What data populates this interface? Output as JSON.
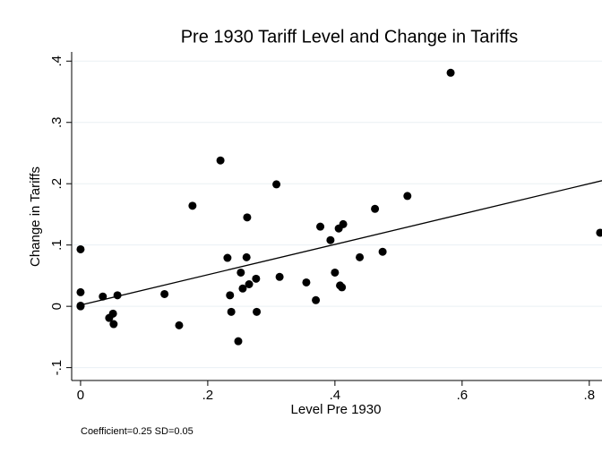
{
  "chart_data": {
    "type": "scatter",
    "title": "Pre 1930 Tariff Level and Change in Tariffs",
    "x_label": "Level Pre 1930",
    "y_label": "Change in Tariffs",
    "note": "Coefficient=0.25  SD=0.05",
    "xlim": [
      -0.014,
      0.82
    ],
    "ylim": [
      -0.121,
      0.415
    ],
    "xticks": [
      0,
      {
        "value": 0.2,
        "label": ".2"
      },
      {
        "value": 0.4,
        "label": ".4"
      },
      {
        "value": 0.6,
        "label": ".6"
      },
      {
        "value": 0.8,
        "label": ".8"
      }
    ],
    "yticks": [
      {
        "value": -0.1,
        "label": "-.1"
      },
      0,
      {
        "value": 0.1,
        "label": ".1"
      },
      {
        "value": 0.2,
        "label": ".2"
      },
      {
        "value": 0.3,
        "label": ".3"
      },
      {
        "value": 0.4,
        "label": ".4"
      }
    ],
    "grid": true,
    "color": "#000000",
    "x": [
      0,
      0,
      0,
      0,
      0.052,
      0.035,
      0.045,
      0.051,
      0.058,
      0.132,
      0.155,
      0.176,
      0.22,
      0.231,
      0.235,
      0.237,
      0.248,
      0.252,
      0.255,
      0.262,
      0.261,
      0.265,
      0.276,
      0.277,
      0.308,
      0.313,
      0.355,
      0.37,
      0.377,
      0.393,
      0.4,
      0.406,
      0.408,
      0.411,
      0.413,
      0.439,
      0.463,
      0.475,
      0.514,
      0.582,
      0.817
    ],
    "y": [
      0.093,
      0.023,
      0,
      0.001,
      -0.029,
      0.016,
      -0.019,
      -0.012,
      0.018,
      0.02,
      -0.031,
      0.164,
      0.238,
      0.079,
      0.018,
      -0.009,
      -0.057,
      0.055,
      0.029,
      0.145,
      0.08,
      0.036,
      0.045,
      -0.009,
      0.199,
      0.048,
      0.039,
      0.01,
      0.13,
      0.108,
      0.055,
      0.127,
      0.034,
      0.031,
      0.134,
      0.08,
      0.159,
      0.089,
      0.18,
      0.381,
      0.12
    ],
    "fit_line": {
      "x": [
        0,
        0.82
      ],
      "y": [
        0.002,
        0.205
      ]
    }
  }
}
